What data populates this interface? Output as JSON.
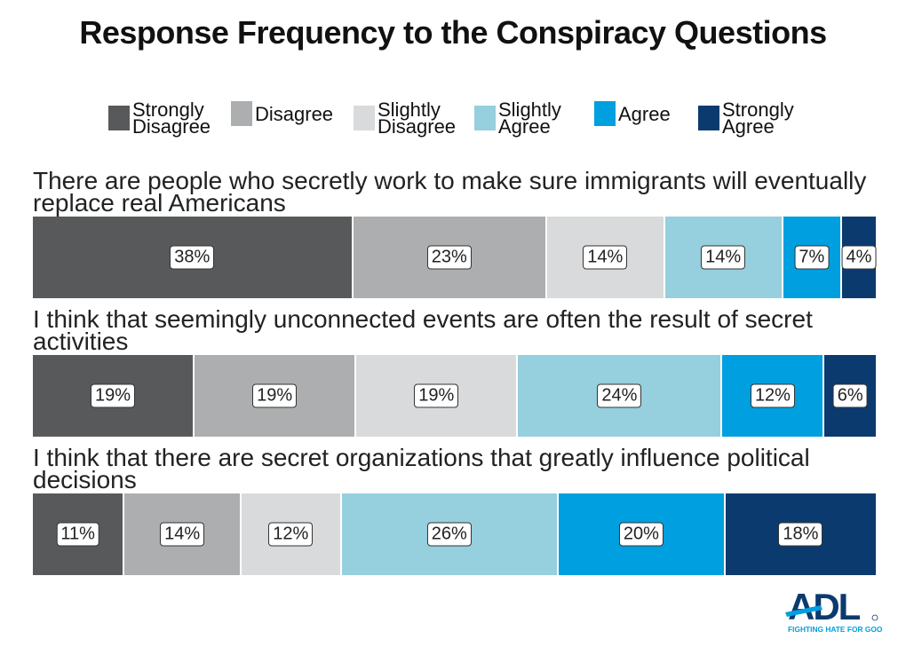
{
  "chart_data": {
    "type": "bar",
    "orientation": "horizontal-stacked-100",
    "title": "Response Frequency to the Conspiracy Questions",
    "legend_position": "top",
    "grid": false,
    "series": [
      {
        "name": "Strongly Disagree",
        "color": "#58595b"
      },
      {
        "name": "Disagree",
        "color": "#adaeb0"
      },
      {
        "name": "Slightly Disagree",
        "color": "#d9dadb"
      },
      {
        "name": "Slightly Agree",
        "color": "#96cfdd"
      },
      {
        "name": "Agree",
        "color": "#009fdf"
      },
      {
        "name": "Strongly Agree",
        "color": "#0b3a6e"
      }
    ],
    "categories": [
      "There are people who secretly work to make sure immigrants will eventually replace real Americans",
      "I think that seemingly unconnected events are often the result of secret activities",
      "I think that there are secret organizations that greatly influence political decisions"
    ],
    "values": [
      [
        38,
        23,
        14,
        14,
        7,
        4
      ],
      [
        19,
        19,
        19,
        24,
        12,
        6
      ],
      [
        11,
        14,
        12,
        26,
        20,
        18
      ]
    ],
    "unit": "%"
  },
  "logo": {
    "text": "ADL",
    "tagline": "FIGHTING HATE FOR GOOD"
  }
}
